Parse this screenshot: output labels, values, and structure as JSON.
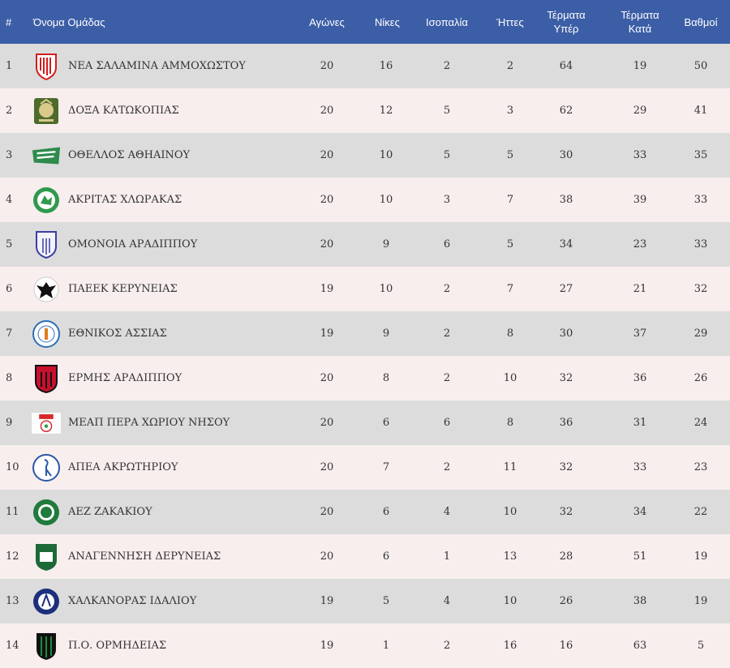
{
  "headers": {
    "pos": "#",
    "team": "Όνομα Ομάδας",
    "played": "Αγώνες",
    "wins": "Νίκες",
    "draws": "Ισοπαλία",
    "losses": "Ήττες",
    "goals_for_1": "Τέρματα",
    "goals_for_2": "Υπέρ",
    "goals_against_1": "Τέρματα",
    "goals_against_2": "Κατά",
    "points": "Βαθμοί"
  },
  "colors": {
    "header_bg": "#3c5ea6",
    "row_odd": "#dcdcdc",
    "row_even": "#f8eeee"
  },
  "rows": [
    {
      "pos": "1",
      "team": "ΝΕΑ ΣΑΛΑΜΙΝΑ ΑΜΜΟΧΩΣΤΟΥ",
      "played": "20",
      "wins": "16",
      "draws": "2",
      "losses": "2",
      "gf": "64",
      "ga": "19",
      "pts": "50",
      "logo": "nea-salamina-crest-icon"
    },
    {
      "pos": "2",
      "team": "ΔΟΞΑ ΚΑΤΩΚΟΠΙΑΣ",
      "played": "20",
      "wins": "12",
      "draws": "5",
      "losses": "3",
      "gf": "62",
      "ga": "29",
      "pts": "41",
      "logo": "doxa-crest-icon"
    },
    {
      "pos": "3",
      "team": "ΟΘΕΛΛΟΣ ΑΘΗΑΙΝΟΥ",
      "played": "20",
      "wins": "10",
      "draws": "5",
      "losses": "5",
      "gf": "30",
      "ga": "33",
      "pts": "35",
      "logo": "othellos-crest-icon"
    },
    {
      "pos": "4",
      "team": "ΑΚΡΙΤΑΣ ΧΛΩΡΑΚΑΣ",
      "played": "20",
      "wins": "10",
      "draws": "3",
      "losses": "7",
      "gf": "38",
      "ga": "39",
      "pts": "33",
      "logo": "akritas-crest-icon"
    },
    {
      "pos": "5",
      "team": "ΟΜΟΝΟΙΑ ΑΡΑΔΙΠΠΟΥ",
      "played": "20",
      "wins": "9",
      "draws": "6",
      "losses": "5",
      "gf": "34",
      "ga": "23",
      "pts": "33",
      "logo": "omonoia-aradippou-crest-icon"
    },
    {
      "pos": "6",
      "team": "ΠΑΕΕΚ ΚΕΡΥΝΕΙΑΣ",
      "played": "19",
      "wins": "10",
      "draws": "2",
      "losses": "7",
      "gf": "27",
      "ga": "21",
      "pts": "32",
      "logo": "paeek-crest-icon"
    },
    {
      "pos": "7",
      "team": "ΕΘΝΙΚΟΣ ΑΣΣΙΑΣ",
      "played": "19",
      "wins": "9",
      "draws": "2",
      "losses": "8",
      "gf": "30",
      "ga": "37",
      "pts": "29",
      "logo": "ethnikos-assias-crest-icon"
    },
    {
      "pos": "8",
      "team": "ΕΡΜΗΣ ΑΡΑΔΙΠΠΟΥ",
      "played": "20",
      "wins": "8",
      "draws": "2",
      "losses": "10",
      "gf": "32",
      "ga": "36",
      "pts": "26",
      "logo": "ermis-crest-icon"
    },
    {
      "pos": "9",
      "team": "ΜΕΑΠ ΠΕΡΑ ΧΩΡΙΟΥ ΝΗΣΟΥ",
      "played": "20",
      "wins": "6",
      "draws": "6",
      "losses": "8",
      "gf": "36",
      "ga": "31",
      "pts": "24",
      "logo": "meap-crest-icon"
    },
    {
      "pos": "10",
      "team": "ΑΠΕΑ ΑΚΡΩΤΗΡΙΟΥ",
      "played": "20",
      "wins": "7",
      "draws": "2",
      "losses": "11",
      "gf": "32",
      "ga": "33",
      "pts": "23",
      "logo": "apea-crest-icon"
    },
    {
      "pos": "11",
      "team": "ΑΕΖ ΖΑΚΑΚΙΟΥ",
      "played": "20",
      "wins": "6",
      "draws": "4",
      "losses": "10",
      "gf": "32",
      "ga": "34",
      "pts": "22",
      "logo": "aez-crest-icon"
    },
    {
      "pos": "12",
      "team": "ΑΝΑΓΕΝΝΗΣΗ ΔΕΡΥΝΕΙΑΣ",
      "played": "20",
      "wins": "6",
      "draws": "1",
      "losses": "13",
      "gf": "28",
      "ga": "51",
      "pts": "19",
      "logo": "anagennisi-crest-icon"
    },
    {
      "pos": "13",
      "team": "ΧΑΛΚΑΝΟΡΑΣ ΙΔΑΛΙΟΥ",
      "played": "19",
      "wins": "5",
      "draws": "4",
      "losses": "10",
      "gf": "26",
      "ga": "38",
      "pts": "19",
      "logo": "chalkanoras-crest-icon"
    },
    {
      "pos": "14",
      "team": "Π.Ο. ΟΡΜΗΔΕΙΑΣ",
      "played": "19",
      "wins": "1",
      "draws": "2",
      "losses": "16",
      "gf": "16",
      "ga": "63",
      "pts": "5",
      "logo": "ormideia-crest-icon"
    }
  ]
}
